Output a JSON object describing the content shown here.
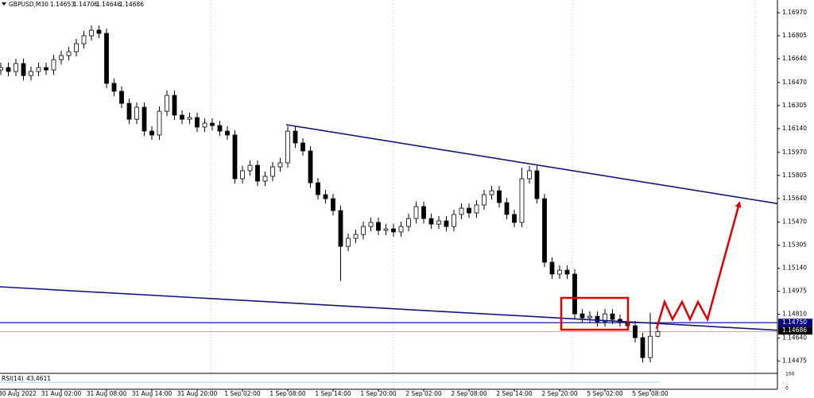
{
  "chart_data": {
    "type": "candlestick",
    "symbol": "GBPUSD,M30",
    "x": [
      null,
      null,
      "30 Aug 2022",
      null,
      null,
      null,
      null,
      null,
      "31 Aug 02:00",
      null,
      null,
      null,
      null,
      null,
      "31 Aug 08:00",
      null,
      null,
      null,
      null,
      null,
      "31 Aug 14:00",
      null,
      null,
      null,
      null,
      null,
      "31 Aug 20:00",
      null,
      null,
      null,
      null,
      null,
      "1 Sep 02:00",
      null,
      null,
      null,
      null,
      null,
      "1 Sep 08:00",
      null,
      null,
      null,
      null,
      null,
      "1 Sep 14:00",
      null,
      null,
      null,
      null,
      null,
      "1 Sep 20:00",
      null,
      null,
      null,
      null,
      null,
      "2 Sep 02:00",
      null,
      null,
      null,
      null,
      null,
      "2 Sep 08:00",
      null,
      null,
      null,
      null,
      null,
      "2 Sep 14:00",
      null,
      null,
      null,
      null,
      null,
      "2 Sep 20:00",
      null,
      null,
      null,
      null,
      null,
      "5 Sep 02:00",
      null,
      null,
      null,
      null,
      null,
      "5 Sep 08:00",
      null
    ],
    "open": [
      1.1656,
      1.16577,
      1.16549,
      1.16606,
      1.1652,
      1.16549,
      1.16577,
      1.1656,
      1.16634,
      1.16663,
      1.16691,
      1.16748,
      1.16805,
      1.16845,
      1.16822,
      1.16464,
      1.16407,
      1.16321,
      1.16207,
      1.16293,
      1.16122,
      1.16094,
      1.16264,
      1.16378,
      1.16236,
      1.16207,
      1.16219,
      1.16151,
      1.16179,
      1.16162,
      1.16122,
      1.16094,
      1.15781,
      1.15838,
      1.15877,
      1.15764,
      1.15798,
      1.15866,
      1.15895,
      1.16122,
      1.16037,
      1.1598,
      1.15752,
      1.15667,
      1.15638,
      1.15553,
      1.15297,
      1.15354,
      1.15382,
      1.15439,
      1.15468,
      1.15411,
      1.15422,
      1.154,
      1.15439,
      1.15496,
      1.15582,
      1.15496,
      1.15456,
      1.15479,
      1.15439,
      1.15525,
      1.1557,
      1.15536,
      1.15593,
      1.15667,
      1.15695,
      1.1561,
      1.15525,
      1.15468,
      1.15781,
      1.15838,
      1.15638,
      1.15183,
      1.15098,
      1.15126,
      1.15098,
      1.14813,
      1.14785,
      1.14796,
      1.14757,
      1.14813,
      1.14774,
      1.14757,
      1.14728,
      1.14643,
      1.145,
      1.14653
    ],
    "high": [
      1.16612,
      1.16612,
      1.16641,
      1.16641,
      1.16584,
      1.16612,
      1.16612,
      1.16669,
      1.16698,
      1.16726,
      1.16783,
      1.1684,
      1.1688,
      1.1688,
      1.16857,
      1.16499,
      1.16442,
      1.16356,
      1.16328,
      1.16328,
      1.16157,
      1.16299,
      1.16413,
      1.16413,
      1.16271,
      1.16254,
      1.16254,
      1.16214,
      1.16214,
      1.16197,
      1.16157,
      1.16129,
      1.15873,
      1.15912,
      1.15912,
      1.15833,
      1.15901,
      1.1593,
      1.16157,
      1.16157,
      1.16072,
      1.16015,
      1.15787,
      1.15702,
      1.15673,
      1.15588,
      1.15389,
      1.15417,
      1.15474,
      1.15503,
      1.15503,
      1.15457,
      1.15457,
      1.15474,
      1.15531,
      1.15617,
      1.15617,
      1.15531,
      1.15514,
      1.15514,
      1.1556,
      1.15605,
      1.15605,
      1.15628,
      1.15702,
      1.1573,
      1.1573,
      1.15645,
      1.1556,
      1.1586,
      1.15873,
      1.15873,
      1.15673,
      1.15218,
      1.15161,
      1.15161,
      1.15133,
      1.14848,
      1.14831,
      1.14831,
      1.14848,
      1.14848,
      1.14809,
      1.14792,
      1.14763,
      1.14678,
      1.1482,
      1.14706
    ],
    "low": [
      1.16525,
      1.16514,
      1.16514,
      1.16485,
      1.16485,
      1.16514,
      1.16525,
      1.16525,
      1.16599,
      1.16628,
      1.16656,
      1.16713,
      1.1677,
      1.16787,
      1.16429,
      1.16372,
      1.16286,
      1.16172,
      1.16172,
      1.16087,
      1.16059,
      1.16059,
      1.16229,
      1.16201,
      1.16172,
      1.16172,
      1.16116,
      1.16116,
      1.16127,
      1.16087,
      1.16059,
      1.15746,
      1.15746,
      1.15803,
      1.15729,
      1.15729,
      1.15763,
      1.15831,
      1.1586,
      1.16002,
      1.15945,
      1.15717,
      1.15632,
      1.15603,
      1.15518,
      1.1505,
      1.15262,
      1.15319,
      1.15347,
      1.15404,
      1.15376,
      1.15376,
      1.15365,
      1.15365,
      1.15404,
      1.15461,
      1.15461,
      1.15421,
      1.15421,
      1.15404,
      1.15404,
      1.1549,
      1.15501,
      1.15501,
      1.15558,
      1.15632,
      1.15575,
      1.1549,
      1.15433,
      1.15433,
      1.15746,
      1.15603,
      1.15148,
      1.15063,
      1.15063,
      1.15063,
      1.14778,
      1.1475,
      1.1475,
      1.14722,
      1.14722,
      1.14739,
      1.14722,
      1.14693,
      1.14608,
      1.14465,
      1.14465,
      1.14646
    ],
    "close": [
      1.16577,
      1.16549,
      1.16606,
      1.1652,
      1.16549,
      1.16577,
      1.1656,
      1.16634,
      1.16663,
      1.16691,
      1.16748,
      1.16805,
      1.16845,
      1.16822,
      1.16464,
      1.16407,
      1.16321,
      1.16207,
      1.16293,
      1.16122,
      1.16094,
      1.16264,
      1.16378,
      1.16236,
      1.16207,
      1.16219,
      1.16151,
      1.16179,
      1.16162,
      1.16122,
      1.16094,
      1.15781,
      1.15838,
      1.15877,
      1.15764,
      1.15798,
      1.15866,
      1.15895,
      1.16122,
      1.16037,
      1.1598,
      1.15752,
      1.15667,
      1.15638,
      1.15553,
      1.15297,
      1.15354,
      1.15382,
      1.15439,
      1.15468,
      1.15411,
      1.15422,
      1.154,
      1.15439,
      1.15496,
      1.15582,
      1.15496,
      1.15456,
      1.15479,
      1.15439,
      1.15525,
      1.1557,
      1.15536,
      1.15593,
      1.15667,
      1.15695,
      1.1561,
      1.15525,
      1.15468,
      1.15781,
      1.15838,
      1.15638,
      1.15183,
      1.15098,
      1.15126,
      1.15098,
      1.14813,
      1.14785,
      1.14796,
      1.14757,
      1.14813,
      1.14774,
      1.14757,
      1.14728,
      1.14643,
      1.145,
      1.14653,
      1.14686
    ],
    "ylim": [
      1.14387,
      1.17061
    ],
    "yticks": [
      {
        "value": 1.1697,
        "label": "1.16970"
      },
      {
        "value": 1.16805,
        "label": "1.16805"
      },
      {
        "value": 1.1664,
        "label": "1.16640"
      },
      {
        "value": 1.1647,
        "label": "1.16470"
      },
      {
        "value": 1.16305,
        "label": "1.16305"
      },
      {
        "value": 1.1614,
        "label": "1.16140"
      },
      {
        "value": 1.1597,
        "label": "1.15970"
      },
      {
        "value": 1.15805,
        "label": "1.15805"
      },
      {
        "value": 1.1564,
        "label": "1.15640"
      },
      {
        "value": 1.1547,
        "label": "1.15470"
      },
      {
        "value": 1.15305,
        "label": "1.15305"
      },
      {
        "value": 1.1514,
        "label": "1.15140"
      },
      {
        "value": 1.14975,
        "label": "1.14975"
      },
      {
        "value": 1.1481,
        "label": "1.14810"
      },
      {
        "value": 1.1464,
        "label": "1.14640"
      },
      {
        "value": 1.14475,
        "label": "1.14475"
      }
    ],
    "level": {
      "value": 1.1475,
      "label": "1.14750",
      "color": "#000080"
    },
    "bull_color": "#ffffff",
    "bear_color": "#000000",
    "rsi": {
      "name": "RSI(14)",
      "value": 43.4611,
      "ylim": [
        0,
        100
      ],
      "yticks": [
        0,
        100
      ],
      "color": "#9fd3ee"
    }
  }
}
